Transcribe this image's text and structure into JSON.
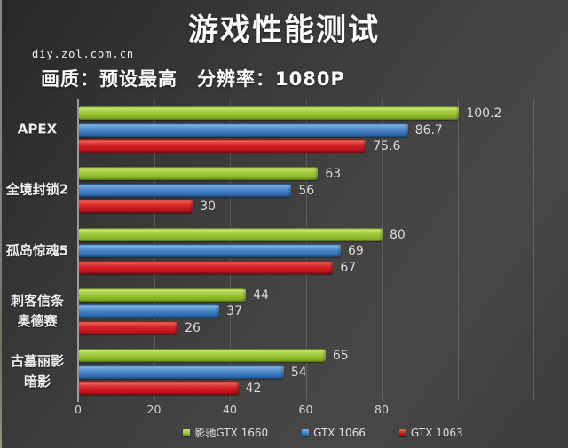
{
  "header": {
    "title": "游戏性能测试",
    "watermark": "diy.zol.com.cn",
    "subtitle": "画质：预设最高　分辨率：1080P"
  },
  "chart_data": {
    "type": "bar",
    "orientation": "horizontal",
    "title": "游戏性能测试",
    "subtitle": "画质：预设最高　分辨率：1080P",
    "categories": [
      "APEX",
      "全境封锁2",
      "孤岛惊魂5",
      "刺客信条\n奥德赛",
      "古墓丽影\n暗影"
    ],
    "series": [
      {
        "name": "影驰GTX 1660",
        "color": "#95c030",
        "values": [
          100.2,
          63,
          80,
          44,
          65
        ]
      },
      {
        "name": "GTX 1066",
        "color": "#3d7cbe",
        "values": [
          86.7,
          56,
          69,
          37,
          54
        ]
      },
      {
        "name": "GTX 1063",
        "color": "#cc1a20",
        "values": [
          75.6,
          30,
          67,
          26,
          42
        ]
      }
    ],
    "x_ticks": [
      0,
      20,
      40,
      60,
      80
    ],
    "x_gridlines": [
      20,
      40,
      60,
      80,
      100,
      120
    ],
    "xlim": [
      0,
      129
    ],
    "grid": true,
    "legend_position": "bottom",
    "value_labels": true,
    "value_label_color": "#dadada",
    "axis_line_color": "#b5b5b5",
    "background_color": "#3f3f3f",
    "text_color": "#f0f0f0"
  }
}
